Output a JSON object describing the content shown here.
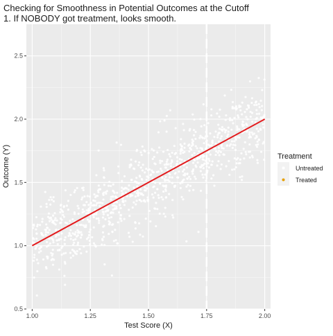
{
  "chart_data": {
    "type": "scatter",
    "title": "Checking for Smoothness in Potential Outcomes at the Cutoff",
    "subtitle": "1. If NOBODY got treatment, looks smooth.",
    "xlabel": "Test Score (X)",
    "ylabel": "Outcome (Y)",
    "xlim": [
      0.975,
      2.025
    ],
    "ylim": [
      0.5,
      2.75
    ],
    "x_ticks": [
      "1.00",
      "1.25",
      "1.50",
      "1.75",
      "2.00"
    ],
    "y_ticks": [
      "0.5",
      "1.0",
      "1.5",
      "2.0",
      "2.5"
    ],
    "cutoff": 1.75,
    "grid": true,
    "legend": {
      "title": "Treatment",
      "position": "right",
      "entries": [
        {
          "label": "Untreated",
          "color": "#f2f2f2"
        },
        {
          "label": "Treated",
          "color": "#e69f00"
        }
      ]
    },
    "series": [
      {
        "name": "Untreated",
        "kind": "points",
        "description_x_range": [
          1.0,
          2.0
        ],
        "noise_sd": 0.15,
        "n": 1000,
        "color": "#ffffff"
      }
    ],
    "fit_line": {
      "color": "#e31a1c",
      "x": [
        1.0,
        2.0
      ],
      "y": [
        1.0,
        2.0
      ]
    }
  }
}
